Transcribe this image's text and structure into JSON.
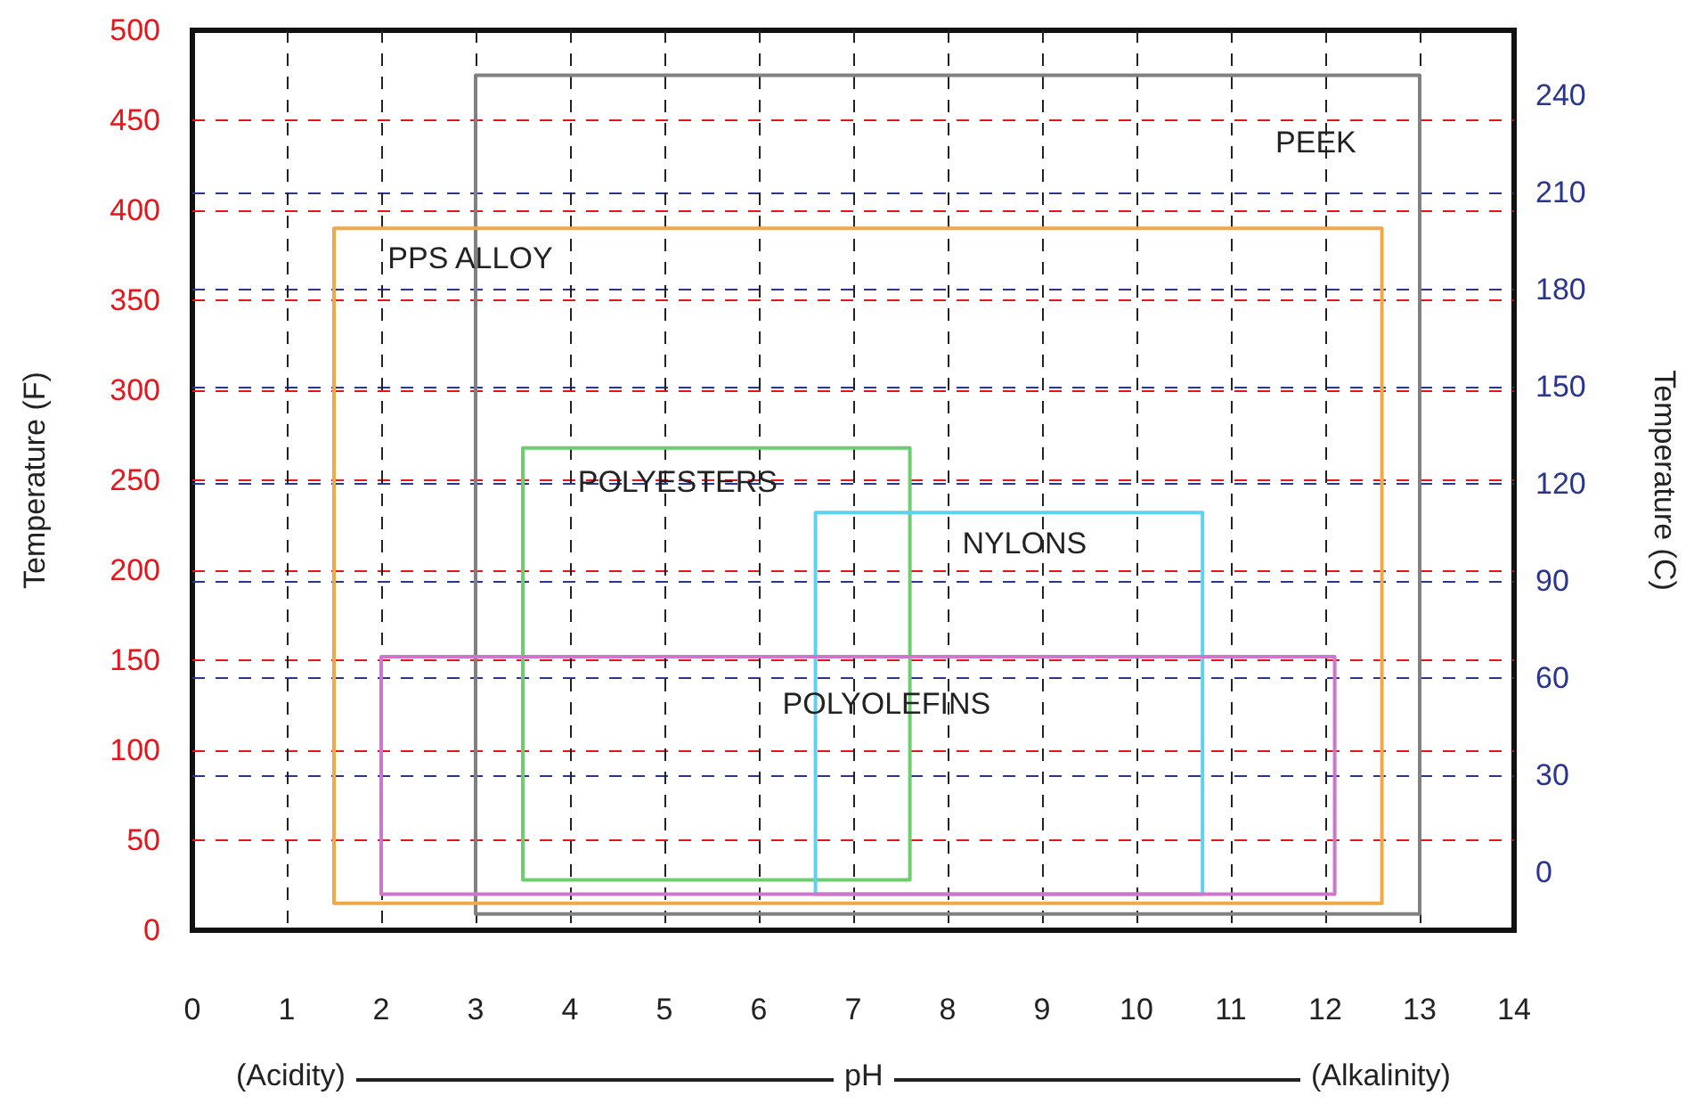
{
  "chart_data": {
    "type": "line",
    "xlabel": "pH",
    "ylabel": "Temperature (F)",
    "y2label": "Temperature (C)",
    "annotations": [
      "(Acidity)",
      "(Alkalinity)"
    ],
    "xlim": [
      0,
      14
    ],
    "xticks": [
      0,
      1,
      2,
      3,
      4,
      5,
      6,
      7,
      8,
      9,
      10,
      11,
      12,
      13,
      14
    ],
    "ylim": [
      0,
      500
    ],
    "yticks": [
      0,
      50,
      100,
      150,
      200,
      250,
      300,
      350,
      400,
      450,
      500
    ],
    "y2lim": [
      -17.8,
      260
    ],
    "y2ticks": [
      0,
      30,
      60,
      90,
      120,
      150,
      180,
      210,
      240
    ],
    "grid": true,
    "marker": "none",
    "line_style": "solid",
    "series": [
      {
        "name": "PEEK",
        "color": "#808080",
        "x": [
          3,
          13,
          13,
          3,
          3
        ],
        "values": [
          9,
          9,
          475,
          475,
          9
        ]
      },
      {
        "name": "PPS ALLOY",
        "color": "#f0a848",
        "x": [
          1.5,
          12.6,
          12.6,
          1.5,
          1.5
        ],
        "values": [
          15,
          15,
          390,
          390,
          15
        ]
      },
      {
        "name": "POLYESTERS",
        "color": "#70cc70",
        "x": [
          3.5,
          7.6,
          7.6,
          3.5,
          3.5
        ],
        "values": [
          28,
          28,
          268,
          268,
          28
        ]
      },
      {
        "name": "NYLONS",
        "color": "#60d0f0",
        "x": [
          6.6,
          10.7,
          10.7,
          6.6,
          6.6
        ],
        "values": [
          20,
          20,
          232,
          232,
          20
        ]
      },
      {
        "name": "POLYOLEFINS",
        "color": "#cc77cc",
        "x": [
          2,
          12.1,
          12.1,
          2,
          2
        ],
        "values": [
          20,
          20,
          152,
          152,
          20
        ]
      }
    ]
  }
}
